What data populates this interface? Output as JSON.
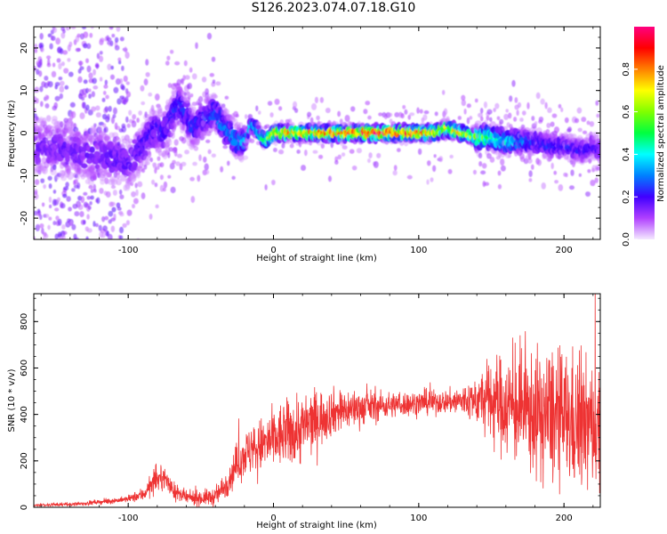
{
  "figure_title": "S126.2023.074.07.18.G10",
  "colors": {
    "snr_line": "#ee3333",
    "background": "#ffffff",
    "axis": "#000000"
  },
  "chart_data": [
    {
      "type": "heatmap",
      "title": "",
      "xlabel": "Height of straight line (km)",
      "ylabel": "Frequency (Hz)",
      "xlim": [
        -165,
        225
      ],
      "ylim": [
        -25,
        25
      ],
      "xticks": [
        -100,
        0,
        100,
        200
      ],
      "xtick_labels": [
        "-100",
        "0",
        "100",
        "200"
      ],
      "yticks": [
        -20,
        -10,
        0,
        10,
        20
      ],
      "ytick_labels": [
        "-20",
        "-10",
        "0",
        "10",
        "20"
      ],
      "colorbar": {
        "label": "Normalized spectral amplitude",
        "range": [
          0,
          1
        ],
        "ticks": [
          0.0,
          0.2,
          0.4,
          0.6,
          0.8
        ],
        "tick_labels": [
          "0.0",
          "0.2",
          "0.4",
          "0.6",
          "0.8"
        ],
        "colormap": [
          "#f4e9ff",
          "#b040ff",
          "#4000ff",
          "#0080ff",
          "#00ffff",
          "#00ff40",
          "#80ff00",
          "#ffff00",
          "#ff8000",
          "#ff0000",
          "#ff0080"
        ]
      },
      "ridge": {
        "description": "peak frequency track (Hz) vs height (km)",
        "x": [
          -165,
          -150,
          -140,
          -130,
          -120,
          -110,
          -100,
          -95,
          -90,
          -85,
          -80,
          -75,
          -70,
          -65,
          -60,
          -55,
          -50,
          -45,
          -40,
          -35,
          -30,
          -25,
          -20,
          -15,
          -12,
          -8,
          -5,
          0,
          10,
          20,
          30,
          50,
          70,
          90,
          110,
          120,
          130,
          140,
          150,
          160,
          170,
          180,
          190,
          200,
          210,
          215,
          220,
          225
        ],
        "y": [
          -3,
          -3,
          -4,
          -5,
          -5,
          -6,
          -7,
          -5,
          -3,
          0,
          1,
          0,
          4,
          7,
          4,
          1,
          3,
          4,
          5,
          2,
          0,
          -2,
          -2,
          2,
          1,
          -1,
          -2,
          0,
          0,
          0,
          0,
          0,
          0,
          0,
          0,
          1,
          0,
          -1,
          -1,
          -2,
          -2,
          -2,
          -3,
          -3,
          -4,
          -4,
          -3,
          -4
        ]
      },
      "ridge_amplitude": {
        "description": "normalized amplitude along the ridge vs height (km)",
        "x": [
          -165,
          -100,
          -50,
          -20,
          -10,
          0,
          30,
          60,
          100,
          130,
          150,
          180,
          225
        ],
        "y": [
          0.15,
          0.18,
          0.25,
          0.35,
          0.45,
          0.75,
          0.85,
          0.95,
          0.9,
          0.7,
          0.5,
          0.25,
          0.2
        ]
      }
    },
    {
      "type": "line",
      "title": "",
      "xlabel": "Height of straight line (km)",
      "ylabel": "SNR (10 * v/v)",
      "xlim": [
        -165,
        225
      ],
      "ylim": [
        0,
        920
      ],
      "xticks": [
        -100,
        0,
        100,
        200
      ],
      "xtick_labels": [
        "-100",
        "0",
        "100",
        "200"
      ],
      "yticks": [
        0,
        200,
        400,
        600,
        800
      ],
      "ytick_labels": [
        "0",
        "200",
        "400",
        "600",
        "800"
      ],
      "series": [
        {
          "name": "SNR",
          "trend": {
            "x": [
              -165,
              -140,
              -120,
              -100,
              -90,
              -80,
              -75,
              -70,
              -65,
              -60,
              -50,
              -40,
              -35,
              -30,
              -25,
              -20,
              -10,
              0,
              10,
              20,
              30,
              40,
              60,
              80,
              100,
              120,
              140,
              150,
              160,
              180,
              200,
              210,
              220,
              225
            ],
            "y": [
              10,
              12,
              22,
              35,
              55,
              120,
              130,
              80,
              55,
              40,
              40,
              45,
              80,
              130,
              190,
              230,
              260,
              290,
              320,
              340,
              380,
              410,
              430,
              440,
              450,
              455,
              460,
              460,
              440,
              400,
              380,
              360,
              350,
              360
            ]
          },
          "noise": {
            "x": [
              -165,
              -100,
              -80,
              -60,
              -40,
              -20,
              0,
              20,
              40,
              80,
              120,
              140,
              150,
              170,
              190,
              210,
              225
            ],
            "y": [
              5,
              12,
              45,
              25,
              35,
              90,
              120,
              140,
              90,
              50,
              45,
              90,
              170,
              220,
              260,
              260,
              240
            ]
          }
        }
      ]
    }
  ]
}
